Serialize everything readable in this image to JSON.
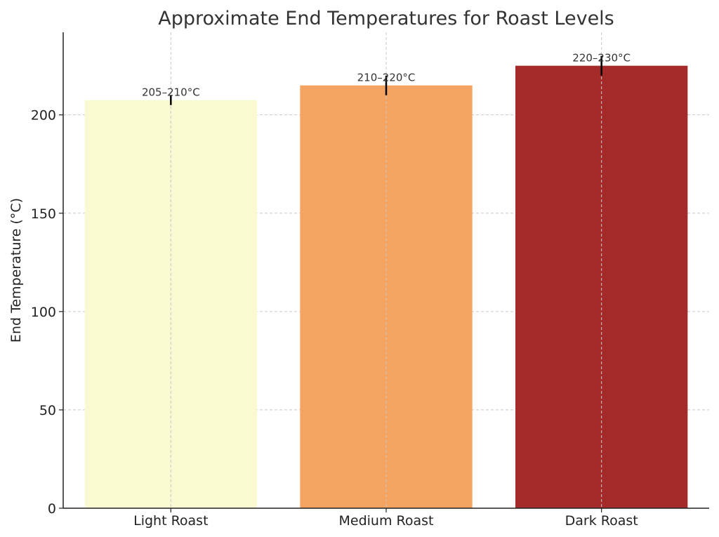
{
  "chart_data": {
    "type": "bar",
    "title": "Approximate End Temperatures for Roast Levels",
    "xlabel": "",
    "ylabel": "End Temperature (°C)",
    "categories": [
      "Light Roast",
      "Medium Roast",
      "Dark Roast"
    ],
    "values": [
      207.5,
      215,
      225
    ],
    "errors": [
      2.5,
      5,
      5
    ],
    "data_labels": [
      "205–210°C",
      "210–220°C",
      "220–230°C"
    ],
    "colors": [
      "#f9f9d2",
      "#f4a460",
      "#a52a2a"
    ],
    "ylim": [
      0,
      242
    ],
    "yticks": [
      0,
      50,
      100,
      150,
      200
    ],
    "grid": true,
    "legend": "none"
  }
}
